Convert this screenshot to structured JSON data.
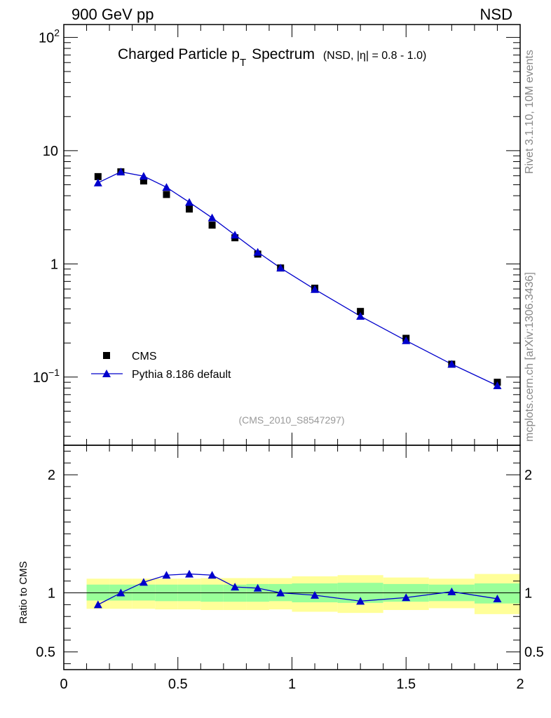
{
  "header": {
    "left": "900 GeV pp",
    "right": "NSD"
  },
  "side_text": {
    "rivet": "Rivet 3.1.10,  10M events",
    "source": "mcplots.cern.ch [arXiv:1306.3436]"
  },
  "chart_data": [
    {
      "type": "scatter",
      "panel": "main",
      "title_main": "Charged Particle p",
      "title_sub": "T",
      "title_tail": "Spectrum",
      "title_extra": "(NSD, |η| = 0.8 - 1.0)",
      "analysis_label": "(CMS_2010_S8547297)",
      "yscale": "log",
      "xlim": [
        0,
        2
      ],
      "ylim": [
        0.025,
        130
      ],
      "yticks": [
        {
          "value": 0.1,
          "base": "10",
          "exp": "−1"
        },
        {
          "value": 1,
          "label": "1"
        },
        {
          "value": 10,
          "label": "10"
        },
        {
          "value": 100,
          "base": "10",
          "exp": "2"
        }
      ],
      "legend_position": "lower-left",
      "series": [
        {
          "name": "CMS",
          "marker": "square",
          "color": "#000000",
          "x": [
            0.15,
            0.25,
            0.35,
            0.45,
            0.55,
            0.65,
            0.75,
            0.85,
            0.95,
            1.1,
            1.3,
            1.5,
            1.7,
            1.9
          ],
          "y": [
            5.9,
            6.5,
            5.4,
            4.1,
            3.05,
            2.2,
            1.7,
            1.22,
            0.92,
            0.61,
            0.38,
            0.22,
            0.13,
            0.09
          ]
        },
        {
          "name": "Pythia 8.186 default",
          "marker": "triangle",
          "color": "#0000cc",
          "x": [
            0.15,
            0.25,
            0.35,
            0.45,
            0.55,
            0.65,
            0.75,
            0.85,
            0.95,
            1.1,
            1.3,
            1.5,
            1.7,
            1.9
          ],
          "y": [
            5.2,
            6.5,
            5.95,
            4.75,
            3.5,
            2.55,
            1.8,
            1.27,
            0.92,
            0.595,
            0.345,
            0.21,
            0.13,
            0.084
          ]
        }
      ]
    },
    {
      "type": "line",
      "panel": "ratio",
      "ylabel": "Ratio to CMS",
      "xlim": [
        0,
        2
      ],
      "ylim": [
        0.35,
        2.25
      ],
      "yticks": [
        0.5,
        1,
        2
      ],
      "xticks": [
        0,
        0.5,
        1,
        1.5,
        2
      ],
      "reference_line": 1,
      "bands": {
        "inner_color": "#99ff99",
        "outer_color": "#ffff99",
        "bins": [
          {
            "x0": 0.1,
            "x1": 0.2,
            "in_lo": 0.935,
            "in_hi": 1.07,
            "out_lo": 0.865,
            "out_hi": 1.12
          },
          {
            "x0": 0.2,
            "x1": 0.3,
            "in_lo": 0.935,
            "in_hi": 1.07,
            "out_lo": 0.865,
            "out_hi": 1.12
          },
          {
            "x0": 0.3,
            "x1": 0.4,
            "in_lo": 0.935,
            "in_hi": 1.07,
            "out_lo": 0.865,
            "out_hi": 1.12
          },
          {
            "x0": 0.4,
            "x1": 0.5,
            "in_lo": 0.93,
            "in_hi": 1.07,
            "out_lo": 0.86,
            "out_hi": 1.12
          },
          {
            "x0": 0.5,
            "x1": 0.6,
            "in_lo": 0.93,
            "in_hi": 1.07,
            "out_lo": 0.86,
            "out_hi": 1.12
          },
          {
            "x0": 0.6,
            "x1": 0.7,
            "in_lo": 0.925,
            "in_hi": 1.07,
            "out_lo": 0.855,
            "out_hi": 1.125
          },
          {
            "x0": 0.7,
            "x1": 0.8,
            "in_lo": 0.925,
            "in_hi": 1.07,
            "out_lo": 0.855,
            "out_hi": 1.125
          },
          {
            "x0": 0.8,
            "x1": 0.9,
            "in_lo": 0.925,
            "in_hi": 1.075,
            "out_lo": 0.855,
            "out_hi": 1.125
          },
          {
            "x0": 0.9,
            "x1": 1.0,
            "in_lo": 0.93,
            "in_hi": 1.075,
            "out_lo": 0.86,
            "out_hi": 1.125
          },
          {
            "x0": 1.0,
            "x1": 1.2,
            "in_lo": 0.92,
            "in_hi": 1.08,
            "out_lo": 0.84,
            "out_hi": 1.14
          },
          {
            "x0": 1.2,
            "x1": 1.4,
            "in_lo": 0.915,
            "in_hi": 1.085,
            "out_lo": 0.83,
            "out_hi": 1.15
          },
          {
            "x0": 1.4,
            "x1": 1.6,
            "in_lo": 0.925,
            "in_hi": 1.075,
            "out_lo": 0.855,
            "out_hi": 1.13
          },
          {
            "x0": 1.6,
            "x1": 1.8,
            "in_lo": 0.93,
            "in_hi": 1.07,
            "out_lo": 0.87,
            "out_hi": 1.12
          },
          {
            "x0": 1.8,
            "x1": 2.0,
            "in_lo": 0.91,
            "in_hi": 1.08,
            "out_lo": 0.82,
            "out_hi": 1.16
          }
        ]
      },
      "series": [
        {
          "name": "Pythia 8.186 default",
          "color": "#0000cc",
          "x": [
            0.15,
            0.25,
            0.35,
            0.45,
            0.55,
            0.65,
            0.75,
            0.85,
            0.95,
            1.1,
            1.3,
            1.5,
            1.7,
            1.9
          ],
          "y": [
            0.9,
            1.0,
            1.09,
            1.15,
            1.16,
            1.15,
            1.05,
            1.04,
            1.0,
            0.98,
            0.93,
            0.96,
            1.01,
            0.95
          ]
        }
      ]
    }
  ]
}
